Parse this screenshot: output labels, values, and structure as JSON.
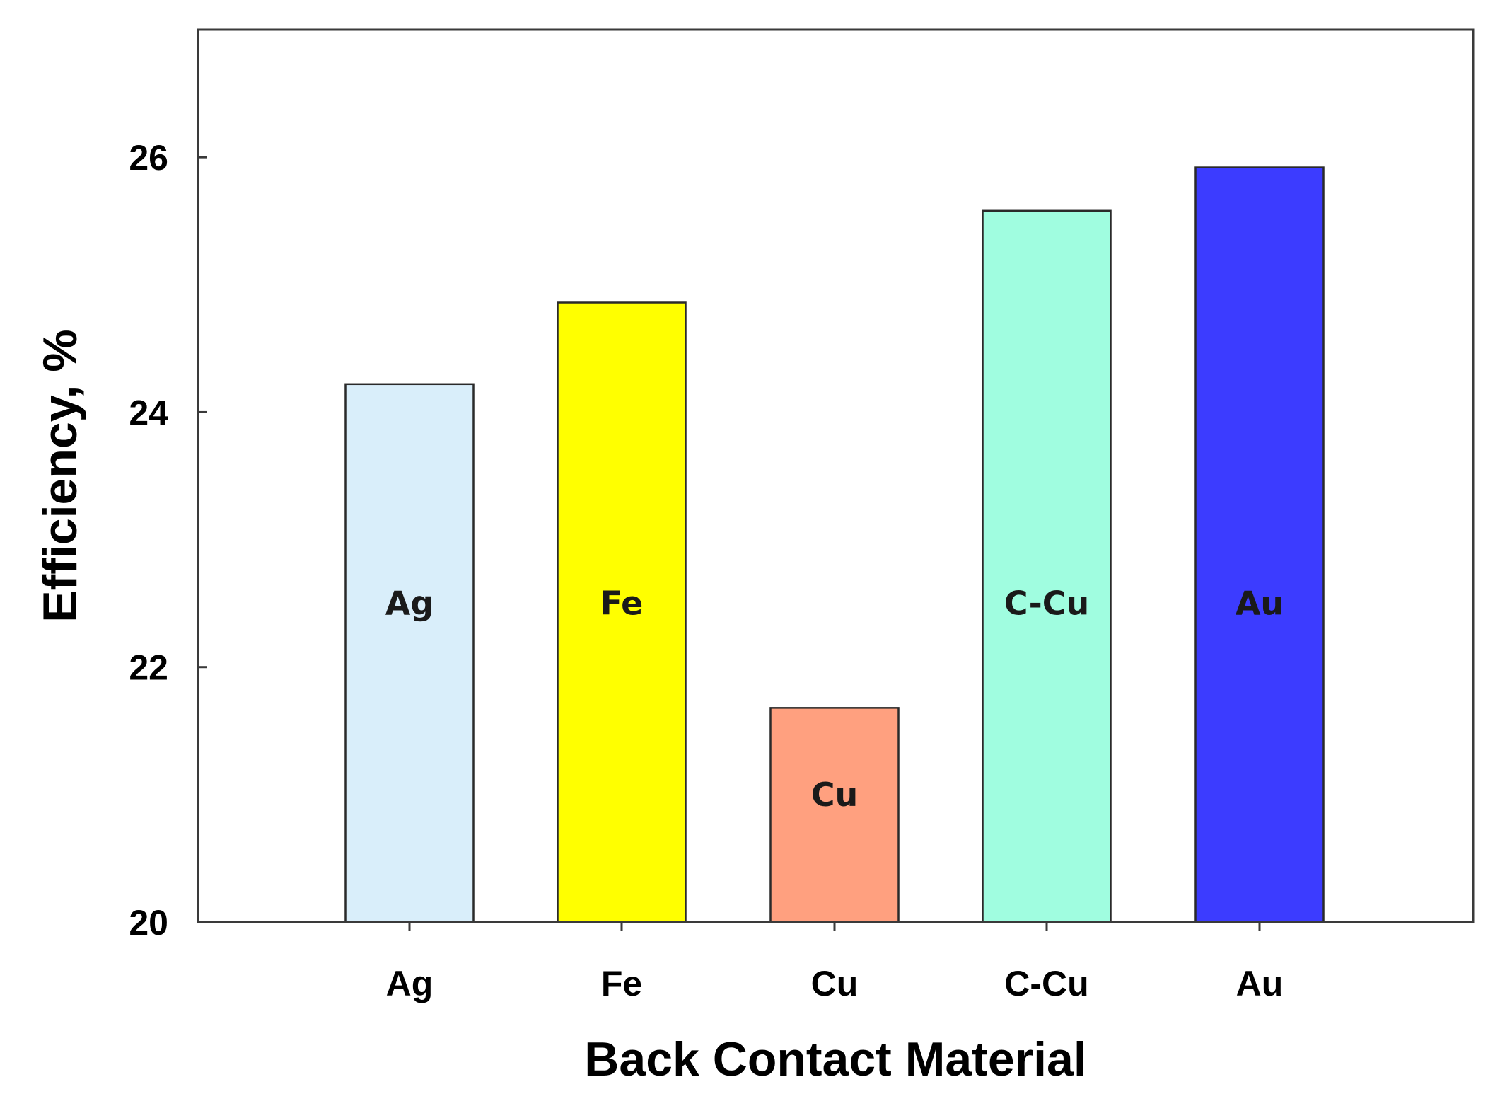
{
  "chart_data": {
    "type": "bar",
    "xlabel": "Back Contact Material",
    "ylabel": "Efficiency, %",
    "categories": [
      "Ag",
      "Fe",
      "Cu",
      "C-Cu",
      "Au"
    ],
    "values": [
      24.22,
      24.86,
      21.68,
      25.58,
      25.92
    ],
    "bar_labels": [
      "Ag",
      "Fe",
      "Cu",
      "C-Cu",
      "Au"
    ],
    "bar_label_values": [
      22.5,
      22.5,
      21.0,
      22.5,
      22.5
    ],
    "colors": [
      "#d9eefa",
      "#ffff00",
      "#ffa07f",
      "#a0fde0",
      "#3c3cff"
    ],
    "ylim": [
      20,
      27
    ],
    "yticks": [
      "20",
      "22",
      "24",
      "26"
    ],
    "ytick_values": [
      20,
      22,
      24,
      26
    ],
    "grid": false,
    "legend": "none"
  }
}
